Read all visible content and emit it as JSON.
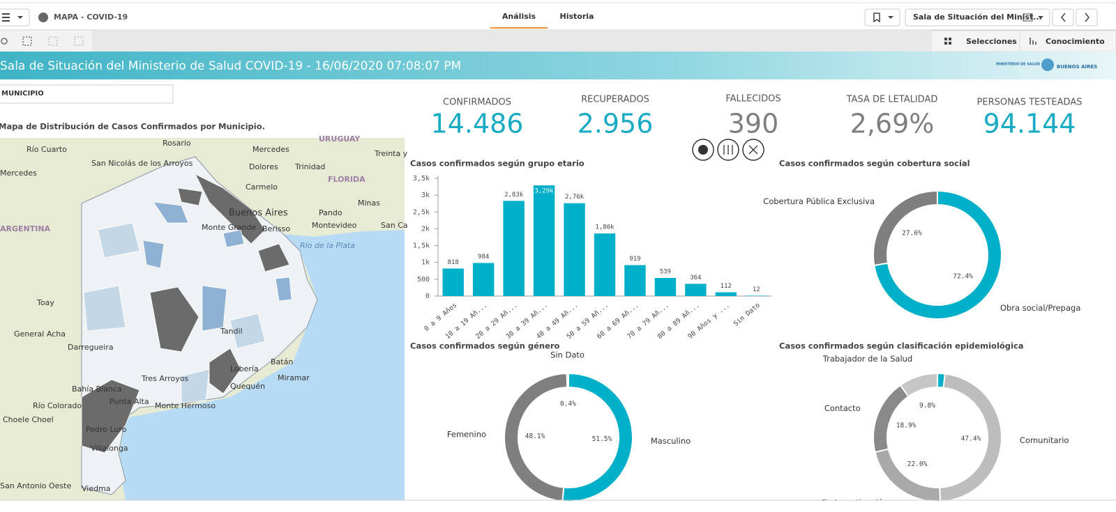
{
  "toolbar": {
    "app_name": "MAPA - COVID-19",
    "tabs": [
      "Análisis",
      "Historia"
    ],
    "sheet_selector": "Sala de Situación del Minist...",
    "selections": "Selecciones",
    "insights": "Conocimiento"
  },
  "header": {
    "title": "Sala de Situación del Ministerio de Salud COVID-19 - 16/06/2020 07:08:07 PM",
    "logo_left": "MINISTERIO DE SALUD",
    "logo_right": "BUENOS AIRES"
  },
  "filter": {
    "label": "MUNICIPIO"
  },
  "map": {
    "title": "Mapa de Distribución de Casos Confirmados por Municipio.",
    "labels": [
      "Río Cuarto",
      "Rosario",
      "Mercedes",
      "URUGUAY",
      "Treinta y",
      "San Nicolás de los Arroyos",
      "Dolores",
      "Trinidad",
      "Mercedes",
      "Carmelo",
      "FLORIDA",
      "ARGENTINA",
      "Buenos Aires",
      "Minas",
      "Pando",
      "Monte Grande",
      "Berisso",
      "Montevideo",
      "San Ca",
      "Río de la Plata",
      "Toay",
      "Tandil",
      "General Acha",
      "Darregueira",
      "Batán",
      "Miramar",
      "Tres Arroyos",
      "Lobería",
      "Quequén",
      "Bahía Blanca",
      "Punta Alta",
      "Monte Hermoso",
      "Río Colorado",
      "Choele Choel",
      "Pedro Luro",
      "Villalonga",
      "San Antonio Oeste",
      "Viedma"
    ]
  },
  "kpis": [
    {
      "label": "CONFIRMADOS",
      "value": "14.486",
      "color": "#1aabc4"
    },
    {
      "label": "RECUPERADOS",
      "value": "2.956",
      "color": "#1aabc4"
    },
    {
      "label": "FALLECIDOS",
      "value": "390",
      "color": "#7f7f7f"
    },
    {
      "label": "TASA DE LETALIDAD",
      "value": "2,69%",
      "color": "#7f7f7f"
    },
    {
      "label": "PERSONAS TESTEADAS",
      "value": "94.144",
      "color": "#1aabc4"
    }
  ],
  "chart_data": [
    {
      "type": "bar",
      "title": "Casos confirmados según grupo etario",
      "categories": [
        "0 a 9 Años",
        "10 a 19 Añ...",
        "20 a 29 Añ...",
        "30 a 39 Añ...",
        "40 a 49 Añ...",
        "50 a 59 Añ...",
        "60 a 69 Añ...",
        "70 a 79 Añ...",
        "80 a 89 Añ...",
        "90 Años y ...",
        "Sin Dato"
      ],
      "values": [
        818,
        984,
        2830,
        3290,
        2760,
        1860,
        919,
        539,
        364,
        112,
        12
      ],
      "value_labels": [
        "818",
        "984",
        "2,83k",
        "3,29k",
        "2,76k",
        "1,86k",
        "919",
        "539",
        "364",
        "112",
        "12"
      ],
      "color": "#00afc8",
      "ylim": [
        0,
        3500
      ],
      "yticks": [
        0,
        500,
        {
          "value": 1000,
          "label": "1k"
        },
        {
          "value": 1500,
          "label": "1,5k"
        },
        {
          "value": 2000,
          "label": "2k"
        },
        {
          "value": 2500,
          "label": "2,5k"
        },
        {
          "value": 3000,
          "label": "3k"
        },
        {
          "value": 3500,
          "label": "3,5k"
        }
      ]
    },
    {
      "type": "donut",
      "title": "Casos confirmados según cobertura social",
      "categories": [
        "Obra social/Prepaga",
        "Cobertura Pública Exclusiva"
      ],
      "values": [
        72.4,
        27.6
      ],
      "value_labels": [
        "72.4%",
        "27.6%"
      ],
      "colors": [
        "#00afc8",
        "#7f7f7f"
      ]
    },
    {
      "type": "donut",
      "title": "Casos confirmados según género",
      "categories": [
        "Masculino",
        "Femenino",
        "Sin Dato"
      ],
      "values": [
        51.5,
        48.1,
        0.4
      ],
      "value_labels": [
        "51.5%",
        "48.1%",
        "0.4%"
      ],
      "colors": [
        "#00afc8",
        "#7f7f7f",
        "#9a9a9a"
      ]
    },
    {
      "type": "donut",
      "title": "Casos confirmados según clasificación epidemiológica",
      "categories": [
        null,
        "Comunitario",
        "En Investigación",
        "Contacto",
        "Trabajador de la Salud"
      ],
      "values": [
        1.9,
        47.4,
        22.0,
        18.9,
        9.8
      ],
      "value_labels": [
        null,
        "47.4%",
        "22.0%",
        "18.9%",
        "9.8%"
      ],
      "colors": [
        "#00afc8",
        "#bdbdbd",
        "#a9a9a9",
        "#8a8a8a",
        "#c6c6c6"
      ]
    }
  ]
}
